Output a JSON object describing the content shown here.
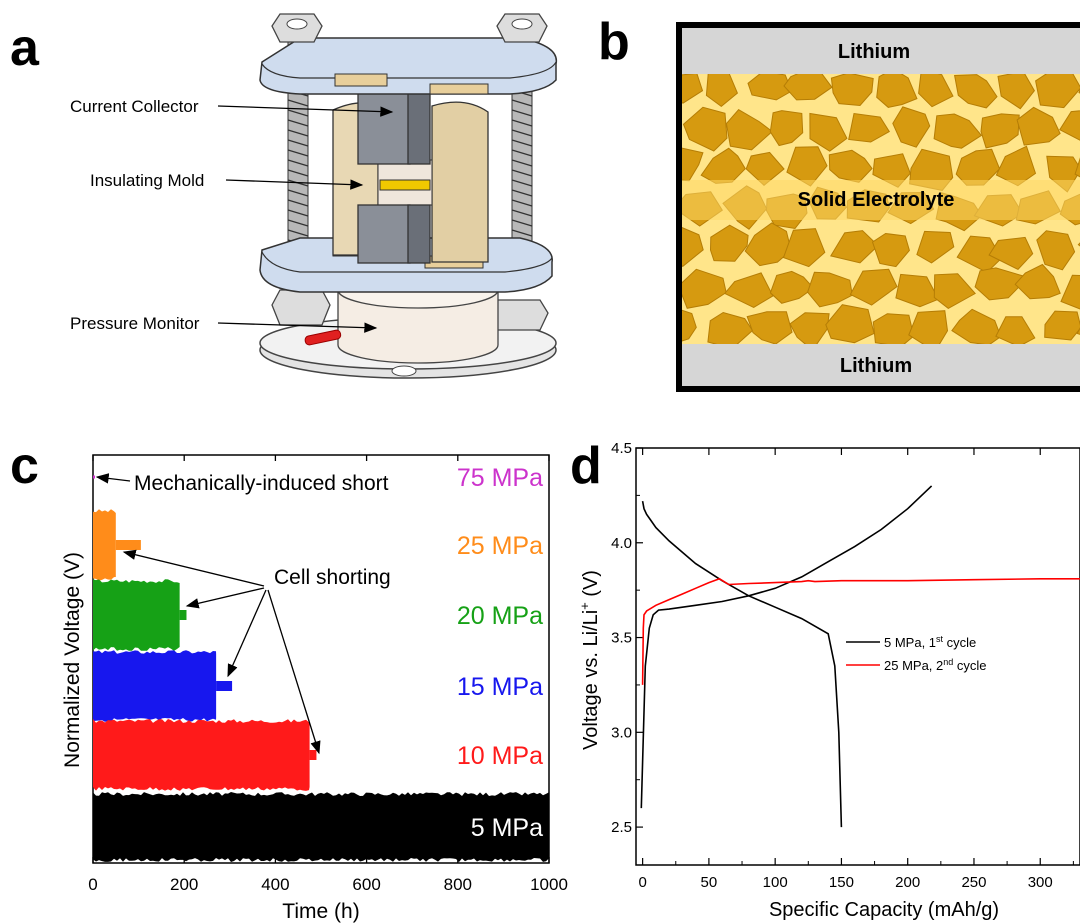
{
  "panels": {
    "a": {
      "letter": "a",
      "labels": [
        "Current Collector",
        "Insulating Mold",
        "Pressure Monitor"
      ]
    },
    "b": {
      "letter": "b",
      "top_label": "Lithium",
      "middle_label": "Solid Electrolyte",
      "bottom_label": "Lithium"
    },
    "c": {
      "letter": "c",
      "annotation_short": "Mechanically-induced short",
      "annotation_shorting": "Cell shorting"
    },
    "d": {
      "letter": "d"
    }
  },
  "chart_data": [
    {
      "panel": "c",
      "type": "bar",
      "xlabel": "Time (h)",
      "ylabel": "Normalized Voltage (V)",
      "xlim": [
        0,
        1000
      ],
      "xticks": [
        0,
        200,
        400,
        600,
        800,
        1000
      ],
      "series": [
        {
          "name": "75 MPa",
          "color": "#cc33cc",
          "duration_h": 2,
          "short_h": 2
        },
        {
          "name": "25 MPa",
          "color": "#ff8c1a",
          "duration_h": 50,
          "short_h": 105
        },
        {
          "name": "20 MPa",
          "color": "#16a116",
          "duration_h": 190,
          "short_h": 205
        },
        {
          "name": "15 MPa",
          "color": "#1717ee",
          "duration_h": 270,
          "short_h": 305
        },
        {
          "name": "10 MPa",
          "color": "#ff1a1a",
          "duration_h": 475,
          "short_h": 490
        },
        {
          "name": "5 MPa",
          "color": "#000000",
          "duration_h": 1000,
          "short_h": null
        }
      ]
    },
    {
      "panel": "d",
      "type": "line",
      "xlabel": "Specific Capacity (mAh/g)",
      "ylabel_main": "Voltage vs. Li/Li",
      "ylabel_sup": "+",
      "ylabel_unit": " (V)",
      "xlim": [
        -5,
        330
      ],
      "ylim": [
        2.3,
        4.5
      ],
      "xticks": [
        0,
        50,
        100,
        150,
        200,
        250,
        300
      ],
      "yticks": [
        2.5,
        3.0,
        3.5,
        4.0,
        4.5
      ],
      "ytick_labels": [
        "2.5",
        "3.0",
        "3.5",
        "4.0",
        "4.5"
      ],
      "series": [
        {
          "name_main": "5 MPa, 1",
          "name_sup": "st",
          "name_tail": " cycle",
          "color": "#000000",
          "segments": [
            {
              "x": [
                0,
                1,
                3,
                6,
                10,
                20,
                40,
                60,
                80,
                100,
                120,
                140,
                145,
                148,
                150
              ],
              "y": [
                4.22,
                4.18,
                4.15,
                4.12,
                4.08,
                4.01,
                3.89,
                3.8,
                3.72,
                3.66,
                3.6,
                3.52,
                3.35,
                3.0,
                2.5
              ]
            },
            {
              "x": [
                -1,
                2,
                5,
                8,
                12,
                20,
                40,
                60,
                80,
                100,
                120,
                140,
                160,
                180,
                200,
                218
              ],
              "y": [
                2.6,
                3.35,
                3.55,
                3.62,
                3.645,
                3.65,
                3.67,
                3.69,
                3.72,
                3.76,
                3.82,
                3.9,
                3.98,
                4.07,
                4.18,
                4.3
              ]
            }
          ]
        },
        {
          "name_main": "25 MPa, 2",
          "name_sup": "nd",
          "name_tail": " cycle",
          "color": "#ff0000",
          "segments": [
            {
              "x": [
                0,
                0.5,
                1,
                3,
                10,
                20,
                30,
                40,
                50,
                58,
                65,
                80,
                100,
                120,
                125,
                130,
                150,
                200,
                250,
                300,
                330
              ],
              "y": [
                3.25,
                3.55,
                3.62,
                3.64,
                3.67,
                3.7,
                3.73,
                3.76,
                3.79,
                3.81,
                3.78,
                3.785,
                3.79,
                3.795,
                3.8,
                3.795,
                3.8,
                3.8,
                3.805,
                3.81,
                3.81
              ]
            }
          ]
        }
      ]
    }
  ]
}
